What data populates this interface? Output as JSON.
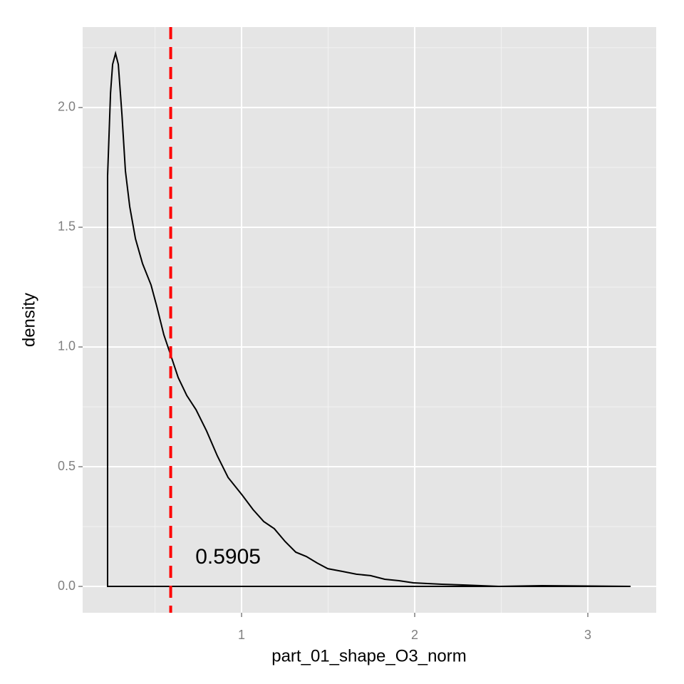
{
  "chart_data": {
    "type": "density",
    "x_label": "part_01_shape_O3_norm",
    "y_label": "density",
    "x": [
      0.226,
      0.226,
      0.243,
      0.255,
      0.272,
      0.288,
      0.309,
      0.329,
      0.354,
      0.387,
      0.428,
      0.477,
      0.51,
      0.551,
      0.593,
      0.634,
      0.683,
      0.737,
      0.798,
      0.86,
      0.922,
      1.004,
      1.066,
      1.128,
      1.189,
      1.251,
      1.313,
      1.374,
      1.436,
      1.498,
      1.58,
      1.663,
      1.745,
      1.827,
      1.909,
      1.992,
      2.156,
      2.28,
      2.486,
      2.733,
      3.247
    ],
    "series": [
      {
        "name": "density",
        "color": "#000000",
        "values": [
          0,
          1.714,
          2.06,
          2.18,
          2.226,
          2.18,
          1.97,
          1.735,
          1.586,
          1.452,
          1.348,
          1.259,
          1.17,
          1.051,
          0.961,
          0.872,
          0.798,
          0.738,
          0.649,
          0.545,
          0.455,
          0.381,
          0.321,
          0.271,
          0.241,
          0.188,
          0.143,
          0.125,
          0.098,
          0.074,
          0.063,
          0.051,
          0.045,
          0.03,
          0.024,
          0.015,
          0.009,
          0.006,
          0,
          0.003,
          0
        ]
      }
    ],
    "vline": {
      "value": 0.5905,
      "color": "#ff0000"
    },
    "annotations": [
      {
        "text": "0.5905",
        "x": 0.922,
        "y": 0.119
      }
    ],
    "xlim": [
      0.082,
      3.395
    ],
    "ylim": [
      -0.11,
      2.336
    ],
    "xticks": [
      1,
      2,
      3
    ],
    "yticks": [
      {
        "value": 0,
        "label": "0.0"
      },
      {
        "value": 0.5,
        "label": "0.5"
      },
      {
        "value": 1,
        "label": "1.0"
      },
      {
        "value": 1.5,
        "label": "1.5"
      },
      {
        "value": 2,
        "label": "2.0"
      }
    ],
    "x_minor_ticks": [
      0.5,
      1.5,
      2.5
    ],
    "y_minor_ticks": [
      0.25,
      0.75,
      1.25,
      1.75,
      2.25
    ],
    "grid": true
  }
}
